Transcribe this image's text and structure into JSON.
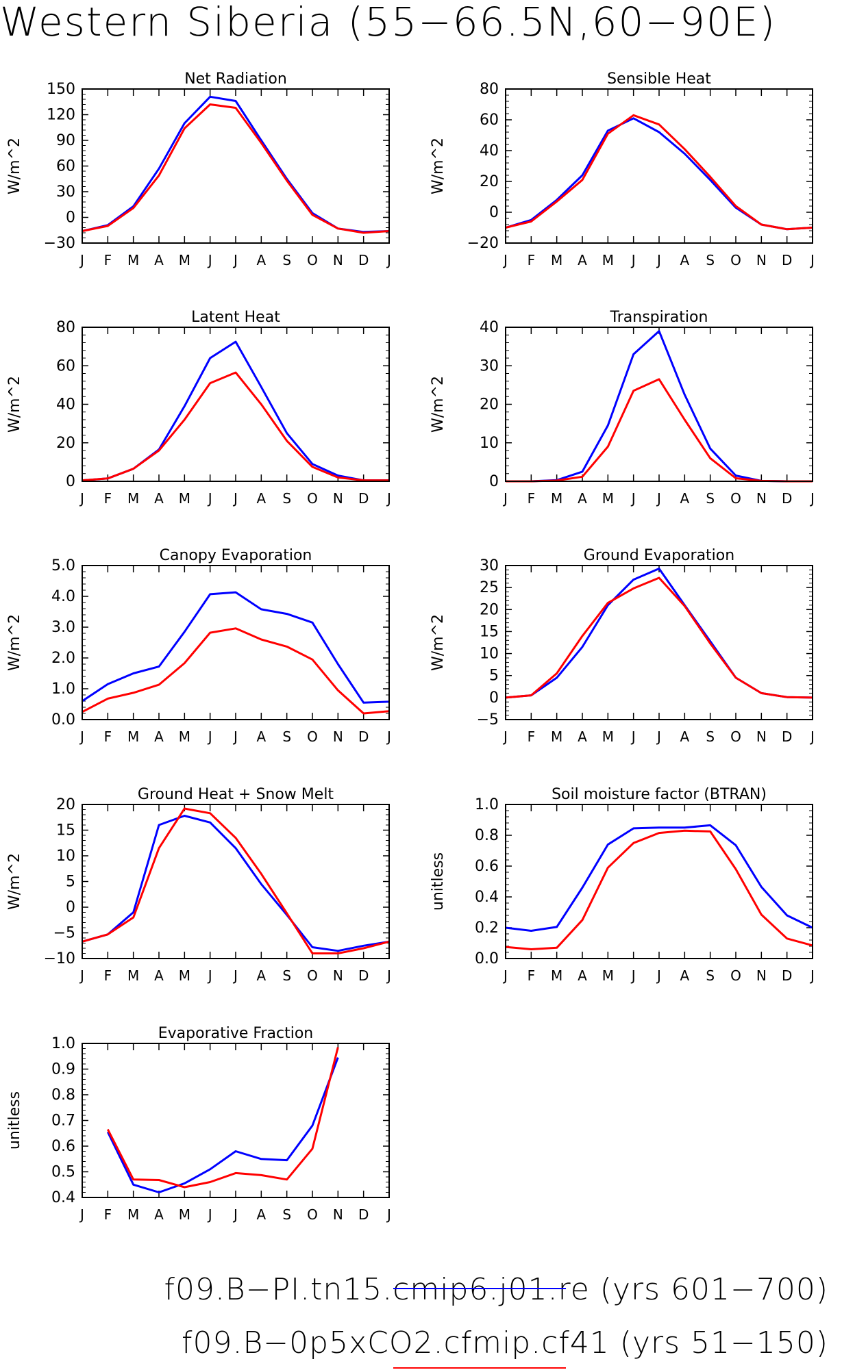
{
  "figure": {
    "title": "Western Siberia (55−66.5N,60−90E)"
  },
  "legend": [
    {
      "label": "f09.B−PI.tn15.cmip6.j01.re (yrs 601−700)",
      "color": "#0000ff"
    },
    {
      "label": "f09.B−0p5xCO2.cfmip.cf41 (yrs 51−150)",
      "color": "#ff0000"
    }
  ],
  "chart_data": [
    {
      "type": "line",
      "title": "Net Radiation",
      "ylabel": "W/m^2",
      "ylim": [
        -30,
        150
      ],
      "yticks": [
        "−30",
        "0",
        "30",
        "60",
        "90",
        "120",
        "150"
      ],
      "ytick_values": [
        -30,
        0,
        30,
        60,
        90,
        120,
        150
      ],
      "x": [
        "J",
        "F",
        "M",
        "A",
        "M",
        "J",
        "J",
        "A",
        "S",
        "O",
        "N",
        "D",
        "J"
      ],
      "series": [
        {
          "color": "#0000ff",
          "values": [
            -16,
            -9,
            13,
            57,
            110,
            141,
            136,
            90,
            45,
            5,
            -13,
            -17,
            -16
          ]
        },
        {
          "color": "#ff0000",
          "values": [
            -16,
            -10,
            11,
            49,
            104,
            132,
            128,
            87,
            43,
            3,
            -13,
            -18,
            -16
          ]
        }
      ]
    },
    {
      "type": "line",
      "title": "Sensible Heat",
      "ylabel": "W/m^2",
      "ylim": [
        -20,
        80
      ],
      "yticks": [
        "−20",
        "0",
        "20",
        "40",
        "60",
        "80"
      ],
      "ytick_values": [
        -20,
        0,
        20,
        40,
        60,
        80
      ],
      "x": [
        "J",
        "F",
        "M",
        "A",
        "M",
        "J",
        "J",
        "A",
        "S",
        "O",
        "N",
        "D",
        "J"
      ],
      "series": [
        {
          "color": "#0000ff",
          "values": [
            -10,
            -5,
            8,
            24,
            53,
            61,
            52,
            38,
            21,
            3,
            -8,
            -11,
            -10
          ]
        },
        {
          "color": "#ff0000",
          "values": [
            -10,
            -6,
            7,
            21,
            51,
            63,
            57,
            41,
            23,
            4,
            -8,
            -11,
            -10
          ]
        }
      ]
    },
    {
      "type": "line",
      "title": "Latent Heat",
      "ylabel": "W/m^2",
      "ylim": [
        0,
        80
      ],
      "yticks": [
        "0",
        "20",
        "40",
        "60",
        "80"
      ],
      "ytick_values": [
        0,
        20,
        40,
        60,
        80
      ],
      "x": [
        "J",
        "F",
        "M",
        "A",
        "M",
        "J",
        "J",
        "A",
        "S",
        "O",
        "N",
        "D",
        "J"
      ],
      "series": [
        {
          "color": "#0000ff",
          "values": [
            0.5,
            1.5,
            6.5,
            16.5,
            39,
            64,
            72.5,
            49,
            25,
            9,
            3,
            0.5,
            0.5
          ]
        },
        {
          "color": "#ff0000",
          "values": [
            0.5,
            1.5,
            6.5,
            16,
            32,
            51,
            56.5,
            40,
            21,
            7.5,
            2,
            0.5,
            0.5
          ]
        }
      ]
    },
    {
      "type": "line",
      "title": "Transpiration",
      "ylabel": "W/m^2",
      "ylim": [
        0,
        40
      ],
      "yticks": [
        "0",
        "10",
        "20",
        "30",
        "40"
      ],
      "ytick_values": [
        0,
        10,
        20,
        30,
        40
      ],
      "x": [
        "J",
        "F",
        "M",
        "A",
        "M",
        "J",
        "J",
        "A",
        "S",
        "O",
        "N",
        "D",
        "J"
      ],
      "series": [
        {
          "color": "#0000ff",
          "values": [
            0,
            0,
            0.3,
            2.5,
            14.5,
            33,
            39,
            22.5,
            8.5,
            1.5,
            0.1,
            0,
            0
          ]
        },
        {
          "color": "#ff0000",
          "values": [
            0,
            0,
            0.2,
            1.2,
            9,
            23.5,
            26.5,
            16,
            6,
            0.8,
            0.1,
            0,
            0
          ]
        }
      ]
    },
    {
      "type": "line",
      "title": "Canopy Evaporation",
      "ylabel": "W/m^2",
      "ylim": [
        0,
        5
      ],
      "yticks": [
        "0.0",
        "1.0",
        "2.0",
        "3.0",
        "4.0",
        "5.0"
      ],
      "ytick_values": [
        0,
        1,
        2,
        3,
        4,
        5
      ],
      "x": [
        "J",
        "F",
        "M",
        "A",
        "M",
        "J",
        "J",
        "A",
        "S",
        "O",
        "N",
        "D",
        "J"
      ],
      "series": [
        {
          "color": "#0000ff",
          "values": [
            0.6,
            1.15,
            1.5,
            1.72,
            2.85,
            4.07,
            4.13,
            3.58,
            3.43,
            3.15,
            1.8,
            0.55,
            0.58
          ]
        },
        {
          "color": "#ff0000",
          "values": [
            0.25,
            0.68,
            0.87,
            1.13,
            1.83,
            2.82,
            2.96,
            2.6,
            2.37,
            1.95,
            0.95,
            0.2,
            0.27
          ]
        }
      ]
    },
    {
      "type": "line",
      "title": "Ground Evaporation",
      "ylabel": "W/m^2",
      "ylim": [
        -5,
        30
      ],
      "yticks": [
        "−5",
        "0",
        "5",
        "10",
        "15",
        "20",
        "25",
        "30"
      ],
      "ytick_values": [
        -5,
        0,
        5,
        10,
        15,
        20,
        25,
        30
      ],
      "x": [
        "J",
        "F",
        "M",
        "A",
        "M",
        "J",
        "J",
        "A",
        "S",
        "O",
        "N",
        "D",
        "J"
      ],
      "series": [
        {
          "color": "#0000ff",
          "values": [
            0,
            0.5,
            4.5,
            11.5,
            21,
            26.8,
            29.3,
            21,
            12.8,
            4.5,
            1,
            0.1,
            0
          ]
        },
        {
          "color": "#ff0000",
          "values": [
            0,
            0.5,
            5.5,
            14,
            21.5,
            24.8,
            27.2,
            20.8,
            12.3,
            4.5,
            1,
            0.1,
            0
          ]
        }
      ]
    },
    {
      "type": "line",
      "title": "Ground Heat + Snow Melt",
      "ylabel": "W/m^2",
      "ylim": [
        -10,
        20
      ],
      "yticks": [
        "−10",
        "−5",
        "0",
        "5",
        "10",
        "15",
        "20"
      ],
      "ytick_values": [
        -10,
        -5,
        0,
        5,
        10,
        15,
        20
      ],
      "x": [
        "J",
        "F",
        "M",
        "A",
        "M",
        "J",
        "J",
        "A",
        "S",
        "O",
        "N",
        "D",
        "J"
      ],
      "series": [
        {
          "color": "#0000ff",
          "values": [
            -6.7,
            -5.3,
            -1,
            16,
            17.8,
            16.5,
            11.5,
            4.5,
            -1.5,
            -7.8,
            -8.5,
            -7.5,
            -6.7
          ]
        },
        {
          "color": "#ff0000",
          "values": [
            -6.7,
            -5.3,
            -2,
            11.5,
            19.2,
            18.3,
            13.5,
            6.5,
            -1.2,
            -9,
            -9,
            -8,
            -6.7
          ]
        }
      ]
    },
    {
      "type": "line",
      "title": "Soil moisture factor (BTRAN)",
      "ylabel": "unitless",
      "ylim": [
        0,
        1
      ],
      "yticks": [
        "0.0",
        "0.2",
        "0.4",
        "0.6",
        "0.8",
        "1.0"
      ],
      "ytick_values": [
        0,
        0.2,
        0.4,
        0.6,
        0.8,
        1.0
      ],
      "x": [
        "J",
        "F",
        "M",
        "A",
        "M",
        "J",
        "J",
        "A",
        "S",
        "O",
        "N",
        "D",
        "J"
      ],
      "series": [
        {
          "color": "#0000ff",
          "values": [
            0.2,
            0.18,
            0.205,
            0.46,
            0.74,
            0.845,
            0.85,
            0.85,
            0.865,
            0.735,
            0.465,
            0.28,
            0.2
          ]
        },
        {
          "color": "#ff0000",
          "values": [
            0.075,
            0.06,
            0.07,
            0.25,
            0.59,
            0.75,
            0.815,
            0.83,
            0.825,
            0.58,
            0.285,
            0.13,
            0.085
          ]
        }
      ]
    },
    {
      "type": "line",
      "title": "Evaporative Fraction",
      "ylabel": "unitless",
      "ylim": [
        0.4,
        1.0
      ],
      "yticks": [
        "0.4",
        "0.5",
        "0.6",
        "0.7",
        "0.8",
        "0.9",
        "1.0"
      ],
      "ytick_values": [
        0.4,
        0.5,
        0.6,
        0.7,
        0.8,
        0.9,
        1.0
      ],
      "x": [
        "J",
        "F",
        "M",
        "A",
        "M",
        "J",
        "J",
        "A",
        "S",
        "O",
        "N",
        "D",
        "J"
      ],
      "series": [
        {
          "color": "#0000ff",
          "values": [
            null,
            0.655,
            0.45,
            0.42,
            0.455,
            0.51,
            0.58,
            0.55,
            0.545,
            0.68,
            0.945,
            null,
            null
          ]
        },
        {
          "color": "#ff0000",
          "values": [
            null,
            0.665,
            0.47,
            0.468,
            0.44,
            0.46,
            0.495,
            0.487,
            0.47,
            0.59,
            0.985,
            null,
            null
          ]
        }
      ]
    }
  ]
}
